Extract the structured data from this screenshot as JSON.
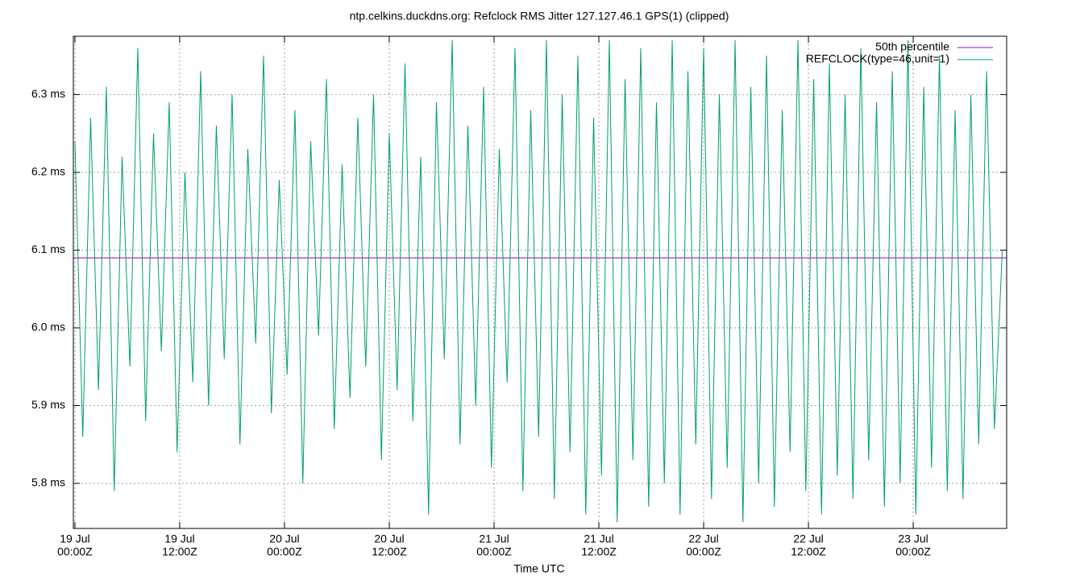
{
  "chart_data": {
    "type": "line",
    "title": "ntp.celkins.duckdns.org: Refclock RMS Jitter 127.127.46.1 GPS(1) (clipped)",
    "x_label": "Time UTC",
    "xlim": [
      -0.18,
      106.7
    ],
    "ylim": [
      5.742,
      6.375
    ],
    "yticks": [
      {
        "value": 5.8,
        "label": "5.8 ms"
      },
      {
        "value": 5.9,
        "label": "5.9 ms"
      },
      {
        "value": 6.0,
        "label": "6.0 ms"
      },
      {
        "value": 6.1,
        "label": "6.1 ms"
      },
      {
        "value": 6.2,
        "label": "6.2 ms"
      },
      {
        "value": 6.3,
        "label": "6.3 ms"
      }
    ],
    "xticks": [
      {
        "value": 0,
        "label": [
          "19 Jul",
          "00:00Z"
        ]
      },
      {
        "value": 12,
        "label": [
          "19 Jul",
          "12:00Z"
        ]
      },
      {
        "value": 24,
        "label": [
          "20 Jul",
          "00:00Z"
        ]
      },
      {
        "value": 36,
        "label": [
          "20 Jul",
          "12:00Z"
        ]
      },
      {
        "value": 48,
        "label": [
          "21 Jul",
          "00:00Z"
        ]
      },
      {
        "value": 60,
        "label": [
          "21 Jul",
          "12:00Z"
        ]
      },
      {
        "value": 72,
        "label": [
          "22 Jul",
          "00:00Z"
        ]
      },
      {
        "value": 84,
        "label": [
          "22 Jul",
          "12:00Z"
        ]
      },
      {
        "value": 96,
        "label": [
          "23 Jul",
          "00:00Z"
        ]
      }
    ],
    "grid": true,
    "legend": "top-right",
    "series": [
      {
        "name": "50th percentile",
        "color": "#9400d3",
        "x": [
          -0.18,
          106.7
        ],
        "values": [
          6.09,
          6.09
        ]
      },
      {
        "name": "REFCLOCK(type=46,unit=1)",
        "color": "#009e73",
        "x": [
          0,
          0.9,
          1.8,
          2.7,
          3.6,
          4.5,
          5.4,
          6.3,
          7.2,
          8.1,
          9,
          9.9,
          10.8,
          11.7,
          12.6,
          13.5,
          14.4,
          15.3,
          16.2,
          17.1,
          18,
          18.9,
          19.8,
          20.7,
          21.6,
          22.5,
          23.4,
          24.3,
          25.2,
          26.1,
          27,
          27.9,
          28.8,
          29.7,
          30.6,
          31.5,
          32.4,
          33.3,
          34.2,
          35.1,
          36,
          36.9,
          37.8,
          38.7,
          39.6,
          40.5,
          41.4,
          42.3,
          43.2,
          44.1,
          45,
          45.9,
          46.8,
          47.7,
          48.6,
          49.5,
          50.4,
          51.3,
          52.2,
          53.1,
          54,
          54.9,
          55.8,
          56.7,
          57.6,
          58.5,
          59.4,
          60.3,
          61.2,
          62.1,
          63,
          63.9,
          64.8,
          65.7,
          66.6,
          67.5,
          68.4,
          69.3,
          70.2,
          71.1,
          72,
          72.9,
          73.8,
          74.7,
          75.6,
          76.5,
          77.4,
          78.3,
          79.2,
          80.1,
          81,
          81.9,
          82.8,
          83.7,
          84.6,
          85.5,
          86.4,
          87.3,
          88.2,
          89.1,
          90,
          90.9,
          91.8,
          92.7,
          93.6,
          94.5,
          95.4,
          96.3,
          97.2,
          98.1,
          99,
          99.9,
          100.8,
          101.7,
          102.6,
          103.5,
          104.4,
          105.3,
          106.2
        ],
        "values": [
          6.24,
          5.86,
          6.27,
          5.92,
          6.31,
          5.79,
          6.22,
          5.95,
          6.36,
          5.88,
          6.25,
          5.97,
          6.29,
          5.84,
          6.2,
          5.93,
          6.33,
          5.9,
          6.26,
          5.96,
          6.3,
          5.85,
          6.23,
          5.98,
          6.35,
          5.89,
          6.19,
          5.94,
          6.28,
          5.8,
          6.24,
          5.99,
          6.32,
          5.87,
          6.21,
          5.91,
          6.27,
          5.95,
          6.3,
          5.83,
          6.25,
          5.92,
          6.34,
          5.88,
          6.22,
          5.76,
          6.29,
          5.96,
          6.37,
          5.85,
          6.26,
          5.9,
          6.31,
          5.82,
          6.23,
          5.93,
          6.36,
          5.79,
          6.28,
          5.86,
          6.37,
          5.78,
          6.3,
          5.84,
          6.35,
          5.76,
          6.27,
          5.81,
          6.37,
          5.75,
          6.32,
          5.83,
          6.36,
          5.77,
          6.29,
          5.8,
          6.37,
          5.76,
          6.33,
          5.85,
          6.36,
          5.78,
          6.3,
          5.82,
          6.37,
          5.75,
          6.31,
          5.8,
          6.35,
          5.77,
          6.28,
          5.84,
          6.37,
          5.79,
          6.32,
          5.76,
          6.34,
          5.81,
          6.3,
          5.78,
          6.36,
          5.83,
          6.29,
          5.77,
          6.33,
          5.8,
          6.37,
          5.76,
          6.31,
          5.82,
          6.35,
          5.79,
          6.28,
          5.78,
          6.3,
          5.85,
          6.33,
          5.87,
          6.1
        ]
      }
    ]
  }
}
